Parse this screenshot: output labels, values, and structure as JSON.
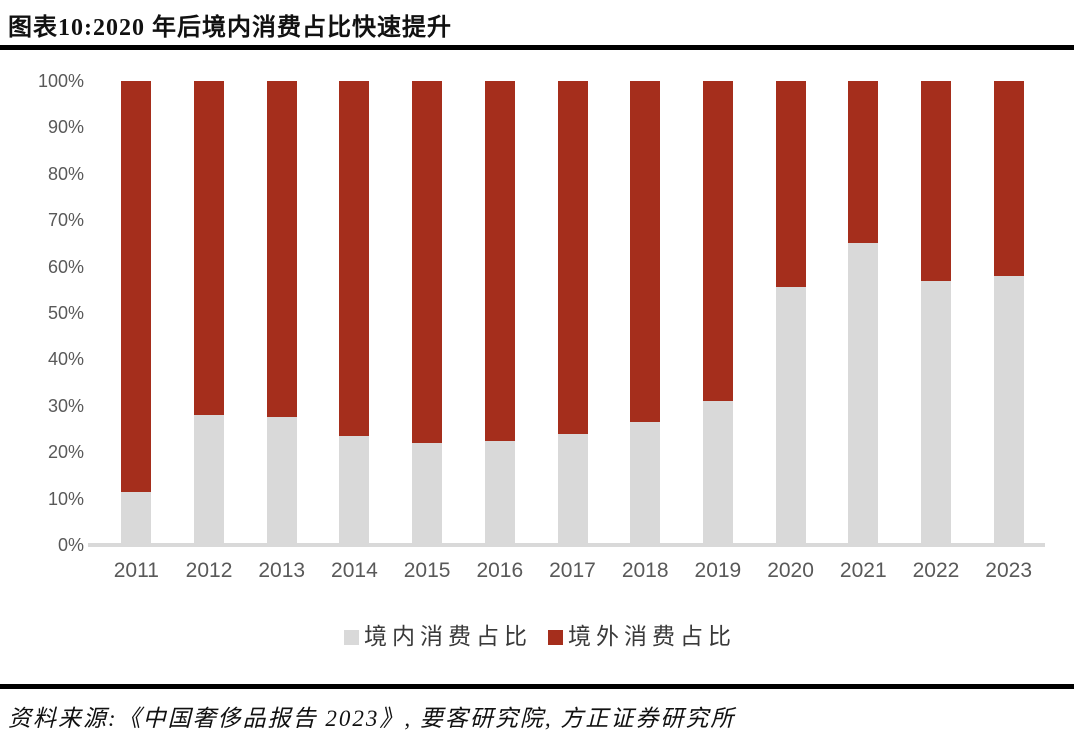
{
  "header": {
    "title": "图表10:2020 年后境内消费占比快速提升"
  },
  "chart_data": {
    "type": "bar",
    "stacked": true,
    "stack_total": 100,
    "title": "图表10:2020 年后境内消费占比快速提升",
    "categories": [
      "2011",
      "2012",
      "2013",
      "2014",
      "2015",
      "2016",
      "2017",
      "2018",
      "2019",
      "2020",
      "2021",
      "2022",
      "2023"
    ],
    "series": [
      {
        "name": "境内消费占比",
        "color": "#D9D9D9",
        "values": [
          11.5,
          28,
          27.5,
          23.5,
          22,
          22.5,
          24,
          26.5,
          31,
          55.5,
          65,
          57,
          58
        ]
      },
      {
        "name": "境外消费占比",
        "color": "#A52E1C",
        "values": [
          88.5,
          72,
          72.5,
          76.5,
          78,
          77.5,
          76,
          73.5,
          69,
          44.5,
          35,
          43,
          42
        ]
      }
    ],
    "ylabel": "",
    "xlabel": "",
    "ylim": [
      0,
      100
    ],
    "yticks": [
      "0%",
      "10%",
      "20%",
      "30%",
      "40%",
      "50%",
      "60%",
      "70%",
      "80%",
      "90%",
      "100%"
    ],
    "grid": false,
    "legend_position": "bottom",
    "axis_text_color": "#595959",
    "baseline_color": "#D9D9D9"
  },
  "footer": {
    "source": "资料来源:《中国奢侈品报告 2023》, 要客研究院, 方正证券研究所"
  }
}
